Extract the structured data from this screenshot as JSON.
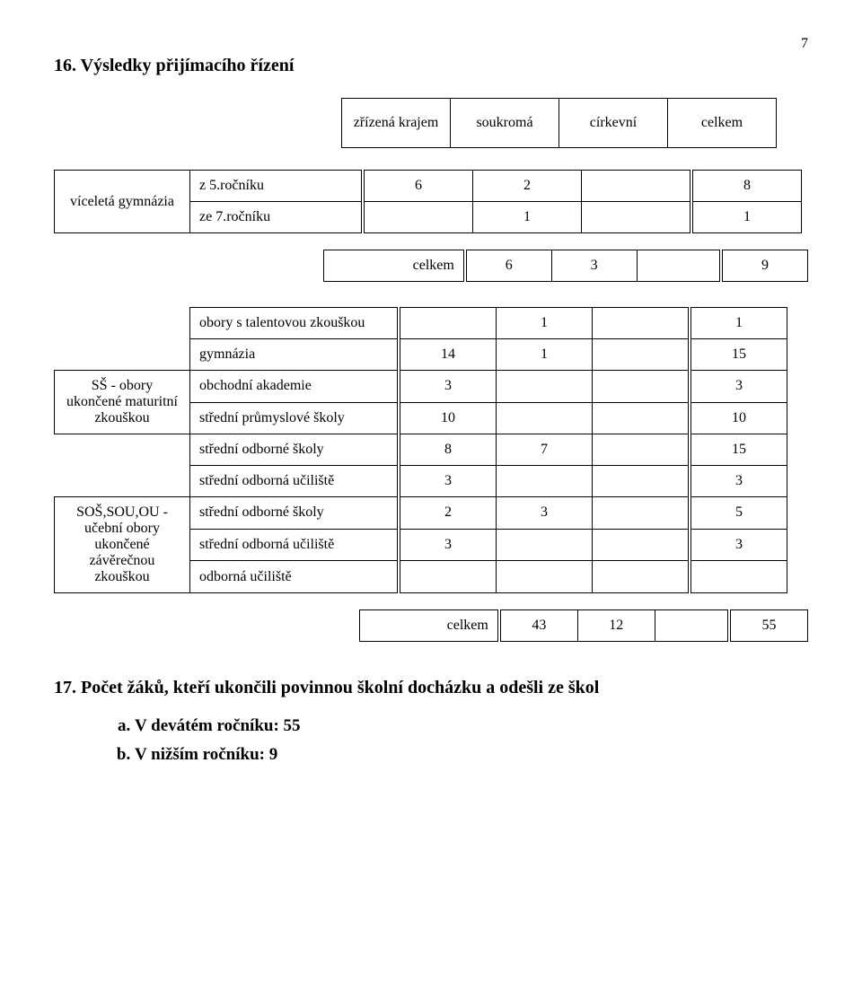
{
  "page_number": "7",
  "heading16": "16.  Výsledky přijímacího řízení",
  "header_table": {
    "columns": [
      "zřízená krajem",
      "soukromá",
      "církevní",
      "celkem"
    ]
  },
  "table2": {
    "group_label": "víceletá gymnázia",
    "rows": [
      {
        "label": "z 5.ročníku",
        "c1": "6",
        "c2": "2",
        "c3": "",
        "c4": "8"
      },
      {
        "label": "ze 7.ročníku",
        "c1": "",
        "c2": "1",
        "c3": "",
        "c4": "1"
      }
    ]
  },
  "celkem_row": {
    "label": "celkem",
    "c1": "6",
    "c2": "3",
    "c3": "",
    "c4": "9"
  },
  "table3": {
    "top_rows": [
      {
        "label": "   obory s talentovou zkouškou",
        "c1": "",
        "c2": "1",
        "c3": "",
        "c4": "1"
      },
      {
        "label": "   gymnázia",
        "c1": "14",
        "c2": "1",
        "c3": "",
        "c4": "15"
      }
    ],
    "group1_label": "SŠ - obory ukončené maturitní zkouškou",
    "group1_rows": [
      {
        "label": "obchodní akademie",
        "c1": "3",
        "c2": "",
        "c3": "",
        "c4": "3"
      },
      {
        "label": "střední průmyslové školy",
        "c1": "10",
        "c2": "",
        "c3": "",
        "c4": "10"
      }
    ],
    "mid_rows": [
      {
        "label": "střední odborné školy",
        "c1": "8",
        "c2": "7",
        "c3": "",
        "c4": "15"
      },
      {
        "label": "střední odborná učiliště",
        "c1": "3",
        "c2": "",
        "c3": "",
        "c4": "3"
      }
    ],
    "group2_label": "SOŠ,SOU,OU - učební obory ukončené závěrečnou zkouškou",
    "group2_rows": [
      {
        "label": "střední odborné školy",
        "c1": "2",
        "c2": "3",
        "c3": "",
        "c4": "5"
      },
      {
        "label": "střední odborná učiliště",
        "c1": "3",
        "c2": "",
        "c3": "",
        "c4": "3"
      },
      {
        "label": "odborná učiliště",
        "c1": "",
        "c2": "",
        "c3": "",
        "c4": ""
      }
    ]
  },
  "celkem_row2": {
    "label": "celkem",
    "c1": "43",
    "c2": "12",
    "c3": "",
    "c4": "55"
  },
  "heading17": "17.  Počet žáků, kteří ukončili povinnou školní docházku a odešli ze škol",
  "sublist": [
    "V devátém ročníku: 55",
    "V nižším ročníku: 9"
  ]
}
